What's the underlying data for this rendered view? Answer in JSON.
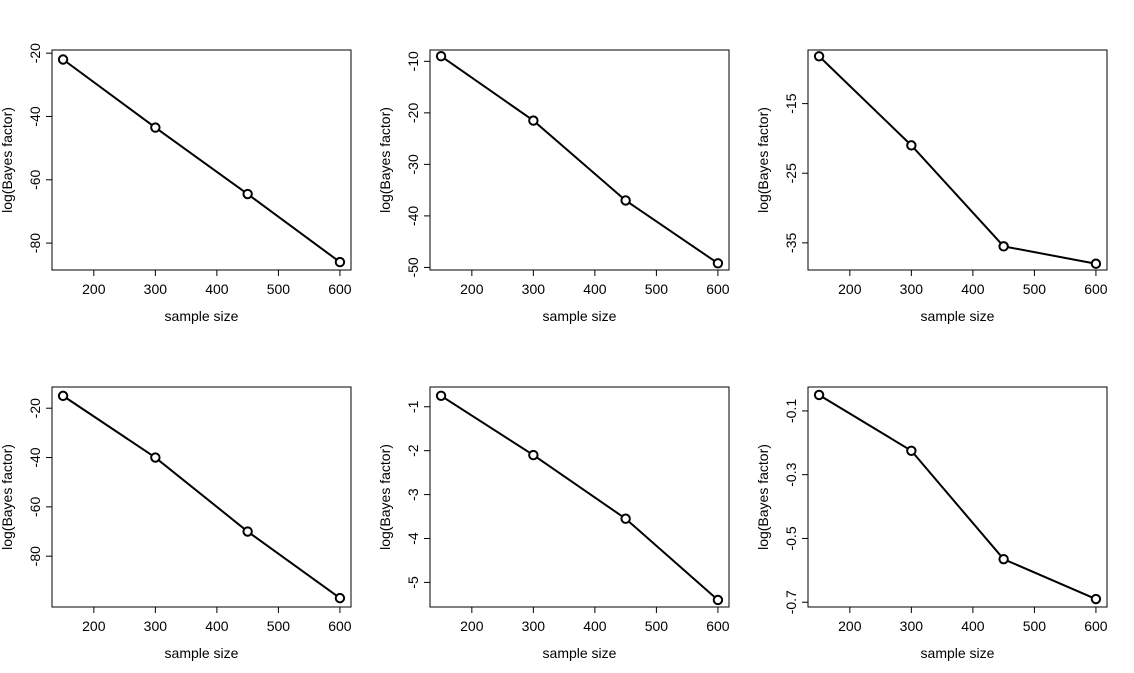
{
  "chart_data": [
    {
      "type": "line",
      "xlabel": "sample size",
      "ylabel": "log(Bayes factor)",
      "x": [
        150,
        300,
        450,
        600
      ],
      "y": [
        -22,
        -43.5,
        -64.5,
        -86
      ],
      "ylim": [
        -88.5,
        -19
      ],
      "xticks": [
        200,
        300,
        400,
        500,
        600
      ],
      "yticks": [
        -80,
        -60,
        -40,
        -20
      ],
      "grid": false
    },
    {
      "type": "line",
      "xlabel": "sample size",
      "ylabel": "log(Bayes factor)",
      "x": [
        150,
        300,
        450,
        600
      ],
      "y": [
        -9,
        -21.5,
        -37,
        -49.2
      ],
      "ylim": [
        -50.5,
        -7.8
      ],
      "xticks": [
        200,
        300,
        400,
        500,
        600
      ],
      "yticks": [
        -50,
        -40,
        -30,
        -20,
        -10
      ],
      "grid": false
    },
    {
      "type": "line",
      "xlabel": "sample size",
      "ylabel": "log(Bayes factor)",
      "x": [
        150,
        300,
        450,
        600
      ],
      "y": [
        -8.2,
        -21,
        -35.5,
        -38
      ],
      "ylim": [
        -38.9,
        -7.3
      ],
      "xticks": [
        200,
        300,
        400,
        500,
        600
      ],
      "yticks": [
        -35,
        -25,
        -15
      ],
      "grid": false
    },
    {
      "type": "line",
      "xlabel": "sample size",
      "ylabel": "log(Bayes factor)",
      "x": [
        150,
        300,
        450,
        600
      ],
      "y": [
        -15,
        -40,
        -70,
        -97
      ],
      "ylim": [
        -100.6,
        -11.4
      ],
      "xticks": [
        200,
        300,
        400,
        500,
        600
      ],
      "yticks": [
        -80,
        -60,
        -40,
        -20
      ],
      "grid": false
    },
    {
      "type": "line",
      "xlabel": "sample size",
      "ylabel": "log(Bayes factor)",
      "x": [
        150,
        300,
        450,
        600
      ],
      "y": [
        -0.75,
        -2.1,
        -3.55,
        -5.4
      ],
      "ylim": [
        -5.56,
        -0.55
      ],
      "xticks": [
        200,
        300,
        400,
        500,
        600
      ],
      "yticks": [
        -5,
        -4,
        -3,
        -2,
        -1
      ],
      "grid": false
    },
    {
      "type": "line",
      "xlabel": "sample size",
      "ylabel": "log(Bayes factor)",
      "x": [
        150,
        300,
        450,
        600
      ],
      "y": [
        -0.05,
        -0.225,
        -0.565,
        -0.69
      ],
      "ylim": [
        -0.715,
        -0.025
      ],
      "xticks": [
        200,
        300,
        400,
        500,
        600
      ],
      "yticks": [
        -0.7,
        -0.5,
        -0.3,
        -0.1
      ],
      "grid": false
    }
  ]
}
